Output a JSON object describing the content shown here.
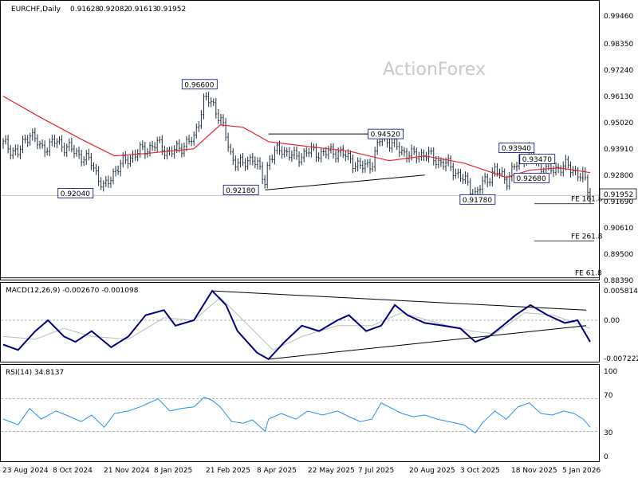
{
  "chart_data": {
    "type": "candlestick",
    "symbol": "EURCHF,Daily",
    "ohlc": [
      "0.91628",
      "0.92082",
      "0.91613",
      "0.91952"
    ],
    "watermark": "ActionForex",
    "current_price": "0.91952",
    "x_tick_labels": [
      "23 Aug 2024",
      "8 Oct 2024",
      "21 Nov 2024",
      "8 Jan 2025",
      "21 Feb 2025",
      "8 Apr 2025",
      "22 May 2025",
      "7 Jul 2025",
      "20 Aug 2025",
      "3 Oct 2025",
      "18 Nov 2025",
      "5 Jan 2026"
    ],
    "price_axis": {
      "labels": [
        "0.99460",
        "0.98350",
        "0.97240",
        "0.96130",
        "0.95020",
        "0.93910",
        "0.92800",
        "0.91690",
        "0.90610",
        "0.89500",
        "0.88390"
      ],
      "ylim": [
        0.8827,
        1.0
      ]
    },
    "price_series": {
      "daily_close": [
        [
          "2024-08-23",
          0.941
        ],
        [
          "2024-09-05",
          0.937
        ],
        [
          "2024-09-15",
          0.946
        ],
        [
          "2024-09-25",
          0.939
        ],
        [
          "2024-10-08",
          0.942
        ],
        [
          "2024-10-20",
          0.939
        ],
        [
          "2024-10-30",
          0.936
        ],
        [
          "2024-11-08",
          0.933
        ],
        [
          "2024-11-19",
          0.922
        ],
        [
          "2024-11-28",
          0.93
        ],
        [
          "2024-12-10",
          0.935
        ],
        [
          "2024-12-20",
          0.938
        ],
        [
          "2025-01-05",
          0.941
        ],
        [
          "2025-01-15",
          0.937
        ],
        [
          "2025-01-25",
          0.94
        ],
        [
          "2025-02-05",
          0.943
        ],
        [
          "2025-02-14",
          0.96
        ],
        [
          "2025-02-21",
          0.958
        ],
        [
          "2025-02-28",
          0.952
        ],
        [
          "2025-03-10",
          0.935
        ],
        [
          "2025-03-20",
          0.932
        ],
        [
          "2025-03-28",
          0.936
        ],
        [
          "2025-04-08",
          0.925
        ],
        [
          "2025-04-11",
          0.935
        ],
        [
          "2025-04-22",
          0.939
        ],
        [
          "2025-05-05",
          0.935
        ],
        [
          "2025-05-15",
          0.938
        ],
        [
          "2025-05-28",
          0.937
        ],
        [
          "2025-06-10",
          0.938
        ],
        [
          "2025-06-20",
          0.935
        ],
        [
          "2025-06-30",
          0.931
        ],
        [
          "2025-07-10",
          0.933
        ],
        [
          "2025-07-18",
          0.944
        ],
        [
          "2025-07-25",
          0.942
        ],
        [
          "2025-08-05",
          0.938
        ],
        [
          "2025-08-15",
          0.936
        ],
        [
          "2025-08-25",
          0.937
        ],
        [
          "2025-09-05",
          0.934
        ],
        [
          "2025-09-15",
          0.932
        ],
        [
          "2025-09-28",
          0.926
        ],
        [
          "2025-10-08",
          0.92
        ],
        [
          "2025-10-14",
          0.924
        ],
        [
          "2025-10-25",
          0.93
        ],
        [
          "2025-11-04",
          0.926
        ],
        [
          "2025-11-14",
          0.933
        ],
        [
          "2025-11-24",
          0.938
        ],
        [
          "2025-12-04",
          0.931
        ],
        [
          "2025-12-14",
          0.93
        ],
        [
          "2025-12-24",
          0.932
        ],
        [
          "2026-01-02",
          0.93
        ],
        [
          "2026-01-10",
          0.927
        ],
        [
          "2026-01-16",
          0.9195
        ]
      ],
      "moving_average": [
        [
          "2024-08-23",
          0.961
        ],
        [
          "2024-09-25",
          0.952
        ],
        [
          "2024-10-30",
          0.943
        ],
        [
          "2024-11-28",
          0.936
        ],
        [
          "2024-12-25",
          0.937
        ],
        [
          "2025-02-05",
          0.939
        ],
        [
          "2025-02-28",
          0.949
        ],
        [
          "2025-03-20",
          0.948
        ],
        [
          "2025-04-11",
          0.942
        ],
        [
          "2025-05-15",
          0.94
        ],
        [
          "2025-06-20",
          0.938
        ],
        [
          "2025-07-25",
          0.934
        ],
        [
          "2025-08-25",
          0.936
        ],
        [
          "2025-09-28",
          0.933
        ],
        [
          "2025-11-04",
          0.927
        ],
        [
          "2025-11-24",
          0.93
        ],
        [
          "2025-12-20",
          0.931
        ],
        [
          "2026-01-16",
          0.929
        ]
      ]
    },
    "price_labels": [
      {
        "text": "0.96600",
        "date": "2025-02-10",
        "price": 0.966
      },
      {
        "text": "0.94520",
        "date": "2025-07-22",
        "price": 0.9452
      },
      {
        "text": "0.93940",
        "date": "2025-11-13",
        "price": 0.9394
      },
      {
        "text": "0.93470",
        "date": "2025-12-01",
        "price": 0.9347
      },
      {
        "text": "0.92680",
        "date": "2025-11-26",
        "price": 0.9268
      },
      {
        "text": "0.92040",
        "date": "2024-10-25",
        "price": 0.9204
      },
      {
        "text": "0.92180",
        "date": "2025-03-18",
        "price": 0.9218
      },
      {
        "text": "0.91780",
        "date": "2025-10-10",
        "price": 0.9178
      }
    ],
    "trendlines": [
      {
        "from": [
          "2025-04-08",
          0.9218
        ],
        "to": [
          "2025-08-25",
          0.928
        ]
      },
      {
        "from": [
          "2025-04-11",
          0.9452
        ],
        "to": [
          "2025-07-22",
          0.9452
        ]
      }
    ],
    "fe_levels": [
      {
        "text": "FE 161.8",
        "price": 0.916
      },
      {
        "text": "FE 261.8",
        "price": 0.9004
      },
      {
        "text": "FE 61.8",
        "price": 0.885
      }
    ],
    "macd": {
      "title": "MACD(12,26,9) -0.002670 -0.001098",
      "axis_labels": [
        "0.005814",
        "0.00",
        "-0.007222"
      ],
      "ylim": [
        -0.007222,
        0.005814
      ],
      "macd_line": [
        [
          "2024-08-23",
          -0.0045
        ],
        [
          "2024-09-05",
          -0.0055
        ],
        [
          "2024-09-20",
          -0.002
        ],
        [
          "2024-10-01",
          0.0
        ],
        [
          "2024-10-15",
          -0.003
        ],
        [
          "2024-10-25",
          -0.004
        ],
        [
          "2024-11-08",
          -0.002
        ],
        [
          "2024-11-25",
          -0.005
        ],
        [
          "2024-12-10",
          -0.003
        ],
        [
          "2024-12-25",
          0.001
        ],
        [
          "2025-01-10",
          0.002
        ],
        [
          "2025-01-20",
          -0.001
        ],
        [
          "2025-02-05",
          0.0
        ],
        [
          "2025-02-21",
          0.0058
        ],
        [
          "2025-03-05",
          0.003
        ],
        [
          "2025-03-15",
          -0.002
        ],
        [
          "2025-04-01",
          -0.006
        ],
        [
          "2025-04-11",
          -0.0072
        ],
        [
          "2025-04-25",
          -0.004
        ],
        [
          "2025-05-10",
          -0.001
        ],
        [
          "2025-05-25",
          -0.002
        ],
        [
          "2025-06-10",
          0.0
        ],
        [
          "2025-06-20",
          0.001
        ],
        [
          "2025-07-05",
          -0.002
        ],
        [
          "2025-07-18",
          -0.001
        ],
        [
          "2025-07-30",
          0.003
        ],
        [
          "2025-08-10",
          0.001
        ],
        [
          "2025-08-25",
          -0.0005
        ],
        [
          "2025-09-10",
          -0.001
        ],
        [
          "2025-09-25",
          -0.0015
        ],
        [
          "2025-10-08",
          -0.004
        ],
        [
          "2025-10-20",
          -0.003
        ],
        [
          "2025-11-01",
          -0.001
        ],
        [
          "2025-11-12",
          0.001
        ],
        [
          "2025-11-25",
          0.003
        ],
        [
          "2025-12-10",
          0.001
        ],
        [
          "2025-12-25",
          -0.0005
        ],
        [
          "2026-01-05",
          0.0
        ],
        [
          "2026-01-16",
          -0.004
        ]
      ],
      "signal_line": [
        [
          "2024-08-23",
          -0.003
        ],
        [
          "2024-09-20",
          -0.0035
        ],
        [
          "2024-10-15",
          -0.0015
        ],
        [
          "2024-11-08",
          -0.003
        ],
        [
          "2024-12-10",
          -0.0035
        ],
        [
          "2025-01-10",
          0.0005
        ],
        [
          "2025-02-05",
          0.0
        ],
        [
          "2025-02-28",
          0.0045
        ],
        [
          "2025-03-20",
          0.0
        ],
        [
          "2025-04-15",
          -0.0055
        ],
        [
          "2025-05-10",
          -0.003
        ],
        [
          "2025-06-10",
          -0.001
        ],
        [
          "2025-07-10",
          -0.001
        ],
        [
          "2025-08-05",
          0.0015
        ],
        [
          "2025-09-05",
          -0.0005
        ],
        [
          "2025-10-05",
          -0.002
        ],
        [
          "2025-10-25",
          -0.0025
        ],
        [
          "2025-11-20",
          0.0015
        ],
        [
          "2025-12-15",
          0.001
        ],
        [
          "2026-01-16",
          -0.0015
        ]
      ],
      "trendlines": [
        {
          "from": [
            "2025-02-21",
            0.0058
          ],
          "to": [
            "2026-01-16",
            0.002
          ]
        },
        {
          "from": [
            "2025-04-11",
            -0.0072
          ],
          "to": [
            "2026-01-16",
            -0.001
          ]
        }
      ]
    },
    "rsi": {
      "title": "RSI(14) 34.8137",
      "axis_labels": [
        "100",
        "70",
        "30",
        "0"
      ],
      "levels": [
        70,
        30
      ],
      "ylim": [
        0,
        100
      ],
      "values": [
        [
          "2024-08-23",
          45
        ],
        [
          "2024-09-05",
          38
        ],
        [
          "2024-09-15",
          58
        ],
        [
          "2024-09-25",
          45
        ],
        [
          "2024-10-08",
          55
        ],
        [
          "2024-10-20",
          48
        ],
        [
          "2024-10-30",
          42
        ],
        [
          "2024-11-08",
          50
        ],
        [
          "2024-11-19",
          35
        ],
        [
          "2024-11-28",
          52
        ],
        [
          "2024-12-10",
          55
        ],
        [
          "2024-12-20",
          60
        ],
        [
          "2025-01-05",
          70
        ],
        [
          "2025-01-15",
          55
        ],
        [
          "2025-01-25",
          58
        ],
        [
          "2025-02-05",
          60
        ],
        [
          "2025-02-14",
          72
        ],
        [
          "2025-02-21",
          68
        ],
        [
          "2025-02-28",
          60
        ],
        [
          "2025-03-10",
          42
        ],
        [
          "2025-03-20",
          40
        ],
        [
          "2025-03-28",
          44
        ],
        [
          "2025-04-08",
          30
        ],
        [
          "2025-04-11",
          45
        ],
        [
          "2025-04-22",
          52
        ],
        [
          "2025-05-05",
          45
        ],
        [
          "2025-05-15",
          55
        ],
        [
          "2025-05-28",
          50
        ],
        [
          "2025-06-10",
          55
        ],
        [
          "2025-06-20",
          48
        ],
        [
          "2025-06-30",
          42
        ],
        [
          "2025-07-10",
          45
        ],
        [
          "2025-07-18",
          65
        ],
        [
          "2025-07-25",
          60
        ],
        [
          "2025-08-05",
          52
        ],
        [
          "2025-08-15",
          48
        ],
        [
          "2025-08-25",
          50
        ],
        [
          "2025-09-05",
          45
        ],
        [
          "2025-09-15",
          42
        ],
        [
          "2025-09-28",
          38
        ],
        [
          "2025-10-08",
          28
        ],
        [
          "2025-10-14",
          40
        ],
        [
          "2025-10-25",
          55
        ],
        [
          "2025-11-04",
          45
        ],
        [
          "2025-11-14",
          60
        ],
        [
          "2025-11-24",
          65
        ],
        [
          "2025-12-04",
          52
        ],
        [
          "2025-12-14",
          50
        ],
        [
          "2025-12-24",
          55
        ],
        [
          "2026-01-02",
          52
        ],
        [
          "2026-01-10",
          45
        ],
        [
          "2026-01-16",
          35
        ]
      ]
    }
  },
  "colors": {
    "candles": "#1f2f3f",
    "moving_average": "#e8232a",
    "macd_line": "#00007f",
    "signal_line": "#bdbdbd",
    "rsi_line": "#1e90ff",
    "trendline": "#000000",
    "label_border": "#000080",
    "grid": "#9a9a9a"
  }
}
